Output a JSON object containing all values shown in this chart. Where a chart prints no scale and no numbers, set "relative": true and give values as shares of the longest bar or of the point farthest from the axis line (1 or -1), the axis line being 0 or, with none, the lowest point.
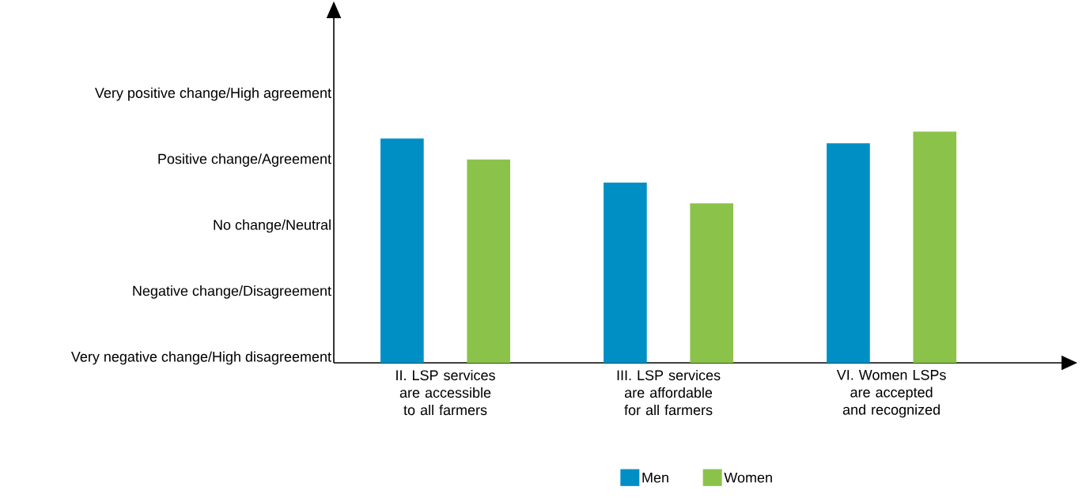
{
  "chart_data": {
    "type": "bar",
    "categories": [
      "II. LSP services are accessible to all farmers",
      "III. LSP services are affordable for all farmers",
      "VI. Women LSPs are accepted and recognized"
    ],
    "series": [
      {
        "name": "Men",
        "color": "#008fc5",
        "values": [
          0.97,
          0.78,
          0.95
        ]
      },
      {
        "name": "Women",
        "color": "#8bc34a",
        "values": [
          0.88,
          0.69,
          1
        ]
      }
    ],
    "relative": true,
    "annotations": [
      "Very negative change/High disagreement",
      "Negative change/Disagreement",
      "No change/Neutral",
      "Positive change/Agreement",
      "Very positive change/High agreement"
    ],
    "legend": "bottom"
  }
}
